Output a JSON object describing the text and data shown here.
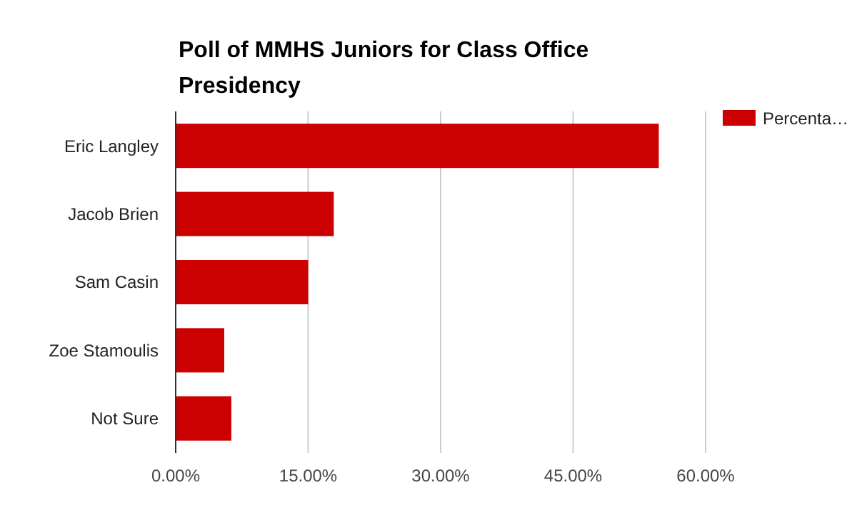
{
  "chart_data": {
    "type": "bar",
    "orientation": "horizontal",
    "title": "Poll of MMHS Juniors for Class Office Presidency",
    "categories": [
      "Eric Langley",
      "Jacob Brien",
      "Sam Casin",
      "Zoe Stamoulis",
      "Not Sure"
    ],
    "series": [
      {
        "name": "Percenta…",
        "color": "#cc0000",
        "values": [
          54.7,
          17.9,
          15.0,
          5.5,
          6.3
        ]
      }
    ],
    "xlim": [
      0,
      60
    ],
    "xticks": [
      {
        "value": 0,
        "label": "0.00%"
      },
      {
        "value": 15,
        "label": "15.00%"
      },
      {
        "value": 30,
        "label": "30.00%"
      },
      {
        "value": 45,
        "label": "45.00%"
      },
      {
        "value": 60,
        "label": "60.00%"
      }
    ],
    "grid": "x",
    "legend": "top right"
  }
}
